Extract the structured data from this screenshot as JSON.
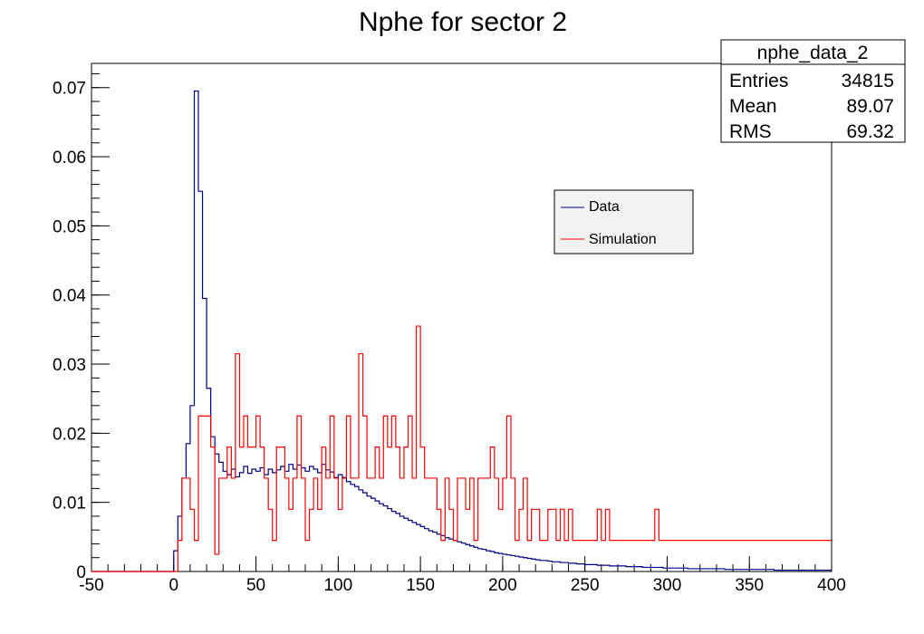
{
  "chart_data": {
    "type": "histogram",
    "title": "Nphe for sector 2",
    "xlabel": "",
    "ylabel": "",
    "xlim": [
      -50,
      400
    ],
    "ylim": [
      0,
      0.0735
    ],
    "bin_width": 2.5,
    "x_ticks": [
      -50,
      0,
      50,
      100,
      150,
      200,
      250,
      300,
      350,
      400
    ],
    "x_tick_labels": [
      "-50",
      "0",
      "50",
      "100",
      "150",
      "200",
      "250",
      "300",
      "350",
      "400"
    ],
    "y_ticks": [
      0,
      0.01,
      0.02,
      0.03,
      0.04,
      0.05,
      0.06,
      0.07
    ],
    "y_tick_labels": [
      "0",
      "0.01",
      "0.02",
      "0.03",
      "0.04",
      "0.05",
      "0.06",
      "0.07"
    ],
    "grid": false,
    "legend": {
      "placement": "upper-right-inner"
    },
    "series": [
      {
        "name": "Data",
        "color": "#00008b",
        "x_start": 0,
        "values": [
          0.003,
          0.008,
          0.0135,
          0.0185,
          0.024,
          0.0695,
          0.055,
          0.0395,
          0.0265,
          0.0195,
          0.017,
          0.0158,
          0.0145,
          0.014,
          0.0148,
          0.0137,
          0.0143,
          0.0152,
          0.0142,
          0.0148,
          0.0145,
          0.015,
          0.014,
          0.0148,
          0.0143,
          0.0147,
          0.0152,
          0.0145,
          0.0155,
          0.0148,
          0.0154,
          0.015,
          0.0145,
          0.0152,
          0.0148,
          0.0143,
          0.0155,
          0.0147,
          0.0144,
          0.0136,
          0.014,
          0.0136,
          0.013,
          0.0126,
          0.0123,
          0.0118,
          0.0114,
          0.0109,
          0.0106,
          0.0102,
          0.0098,
          0.0095,
          0.0091,
          0.0087,
          0.0084,
          0.008,
          0.0077,
          0.0074,
          0.0071,
          0.0068,
          0.0065,
          0.0062,
          0.0059,
          0.0057,
          0.0054,
          0.0052,
          0.0049,
          0.0047,
          0.0045,
          0.0043,
          0.0041,
          0.0039,
          0.0037,
          0.0035,
          0.0033,
          0.0032,
          0.003,
          0.0029,
          0.0027,
          0.0026,
          0.0025,
          0.0024,
          0.0023,
          0.0022,
          0.0021,
          0.002,
          0.0019,
          0.0018,
          0.0017,
          0.0016,
          0.0016,
          0.0015,
          0.0014,
          0.0014,
          0.0013,
          0.0013,
          0.0012,
          0.0012,
          0.0011,
          0.0011,
          0.001,
          0.001,
          0.001,
          0.0009,
          0.0009,
          0.0009,
          0.0008,
          0.0008,
          0.0008,
          0.0008,
          0.0007,
          0.0007,
          0.0007,
          0.0007,
          0.0006,
          0.0006,
          0.0006,
          0.0006,
          0.0006,
          0.0005,
          0.0005,
          0.0005,
          0.0005,
          0.0005,
          0.0005,
          0.0004,
          0.0004,
          0.0004,
          0.0004,
          0.0004,
          0.0004,
          0.0004,
          0.0004,
          0.0004,
          0.0003,
          0.0003,
          0.0003,
          0.0003,
          0.0003,
          0.0003,
          0.0003,
          0.0003,
          0.0003,
          0.0003,
          0.0003,
          0.0003,
          0.0002,
          0.0002,
          0.0002,
          0.0002,
          0.0002,
          0.0002,
          0.0002,
          0.0002,
          0.0002,
          0.0002,
          0.0002,
          0.0002,
          0.0002,
          0.0002
        ]
      },
      {
        "name": "Simulation",
        "color": "#ff0000",
        "x_start": 0,
        "values": [
          0,
          0.0045,
          0.0135,
          0.0135,
          0.009,
          0.0045,
          0.0225,
          0.0225,
          0.0225,
          0.018,
          0.0025,
          0.0135,
          0.0135,
          0.018,
          0.0135,
          0.0315,
          0.018,
          0.0225,
          0.018,
          0.018,
          0.0225,
          0.018,
          0.0135,
          0.009,
          0.0045,
          0.018,
          0.018,
          0.0135,
          0.009,
          0.0135,
          0.0225,
          0.0135,
          0.0045,
          0.009,
          0.0135,
          0.009,
          0.018,
          0.0135,
          0.0225,
          0.0135,
          0.009,
          0.0135,
          0.0225,
          0.0135,
          0.0135,
          0.0315,
          0.0225,
          0.0135,
          0.0135,
          0.018,
          0.0135,
          0.0225,
          0.018,
          0.0225,
          0.018,
          0.0135,
          0.018,
          0.0225,
          0.0135,
          0.0355,
          0.018,
          0.0135,
          0.0135,
          0.0135,
          0.009,
          0.0045,
          0.0135,
          0.009,
          0.0045,
          0.0135,
          0.0135,
          0.009,
          0.0135,
          0.0045,
          0.0135,
          0.0135,
          0.0135,
          0.018,
          0.0135,
          0.009,
          0.0135,
          0.0225,
          0.0135,
          0.0045,
          0.009,
          0.0135,
          0.0045,
          0.009,
          0.009,
          0.0045,
          0.0045,
          0.009,
          0.009,
          0.0045,
          0.009,
          0.0045,
          0.009,
          0.0045,
          0.0045,
          0.0045,
          0.0045,
          0.0045,
          0.0045,
          0.009,
          0.0045,
          0.009,
          0.0045,
          0.0045,
          0.0045,
          0.0045,
          0.0045,
          0.0045,
          0.0045,
          0.0045,
          0.0045,
          0.0045,
          0.0045,
          0.009,
          0.0045,
          0.0045,
          0.0045,
          0.0045,
          0.0045,
          0.0045,
          0.0045,
          0.0045,
          0.0045,
          0.0045,
          0.0045,
          0.0045,
          0.0045,
          0.0045,
          0.0045,
          0.0045,
          0.0045,
          0.0045,
          0.0045,
          0.0045,
          0.0045,
          0.0045,
          0.0045,
          0.0045,
          0.0045,
          0.0045,
          0.0045,
          0.0045,
          0.0045,
          0.0045,
          0.0045,
          0.0045,
          0.0045,
          0.0045,
          0.0045,
          0.0045,
          0.0045,
          0.0045,
          0.0045,
          0.0045,
          0.0045,
          0.0045
        ]
      }
    ]
  },
  "stats_box": {
    "name": "nphe_data_2",
    "rows": [
      {
        "label": "Entries",
        "value": "34815"
      },
      {
        "label": "Mean",
        "value": "89.07"
      },
      {
        "label": "RMS",
        "value": "69.32"
      }
    ]
  }
}
